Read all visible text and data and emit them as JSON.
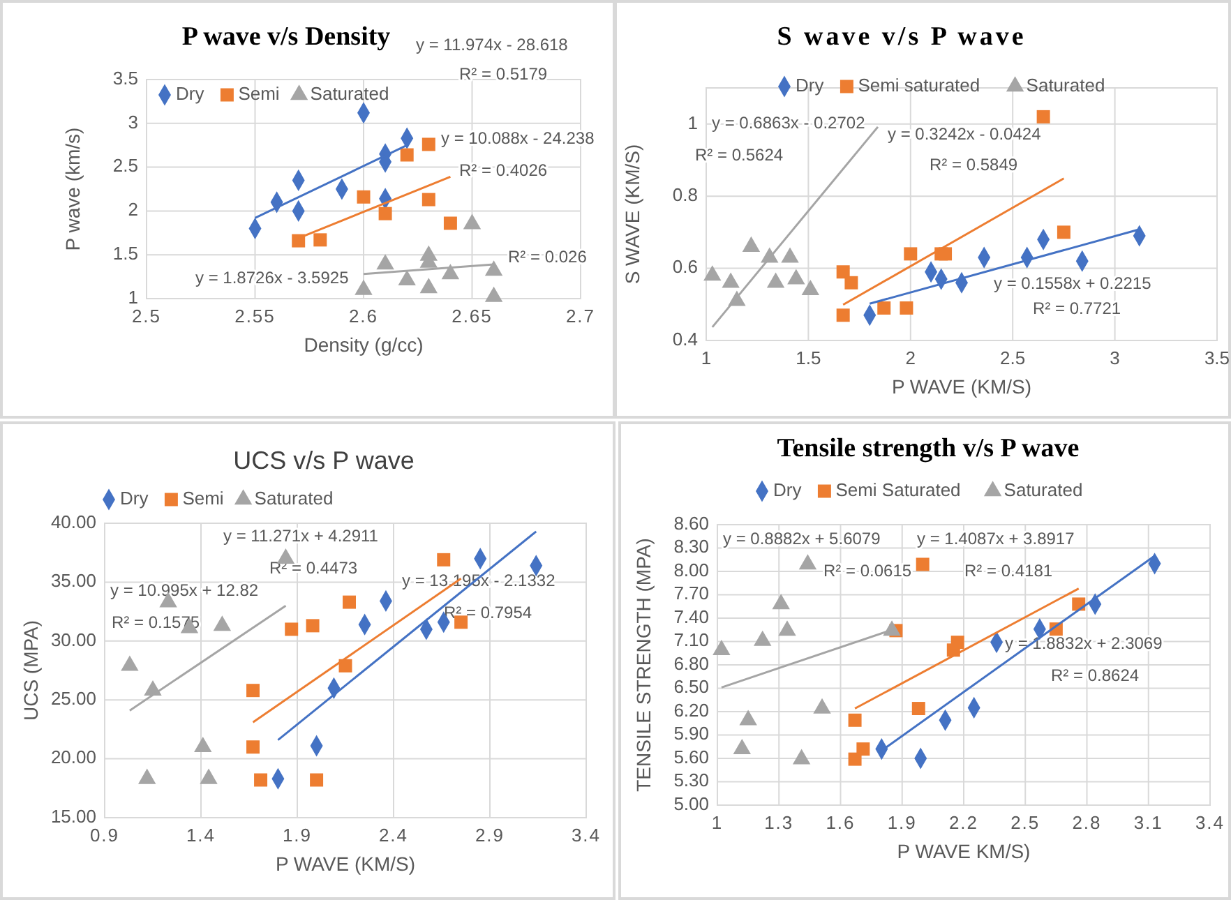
{
  "chart_data": [
    {
      "type": "scatter",
      "title": "P wave v/s Density",
      "xlabel": "Density (g/cc)",
      "ylabel": "P wave (km/s)",
      "xlim": [
        2.5,
        2.7
      ],
      "xticks": [
        2.5,
        2.55,
        2.6,
        2.65,
        2.7
      ],
      "ylim": [
        1,
        3.5
      ],
      "yticks": [
        1,
        1.5,
        2,
        2.5,
        3,
        3.5
      ],
      "grid": true,
      "legend": "top",
      "series": [
        {
          "name": "Dry",
          "color": "#4472c4",
          "marker": "diamond",
          "x": [
            2.55,
            2.56,
            2.57,
            2.57,
            2.59,
            2.6,
            2.61,
            2.61,
            2.61,
            2.62
          ],
          "values": [
            1.8,
            2.1,
            2.35,
            2.0,
            2.25,
            3.12,
            2.65,
            2.56,
            2.14,
            2.83
          ]
        },
        {
          "name": "Semi",
          "color": "#ed7d31",
          "marker": "square",
          "x": [
            2.57,
            2.58,
            2.6,
            2.61,
            2.62,
            2.63,
            2.63,
            2.64
          ],
          "values": [
            1.66,
            1.67,
            2.16,
            1.97,
            2.64,
            2.76,
            2.13,
            1.86
          ]
        },
        {
          "name": "Saturated",
          "color": "#a5a5a5",
          "marker": "triangle",
          "x": [
            2.6,
            2.61,
            2.62,
            2.63,
            2.63,
            2.63,
            2.64,
            2.65,
            2.66,
            2.66
          ],
          "values": [
            1.1,
            1.39,
            1.21,
            1.49,
            1.41,
            1.12,
            1.28,
            1.85,
            1.32,
            1.02
          ]
        },
        {
          "type": "line",
          "color": "#4472c4",
          "marker": "none",
          "x": [
            2.55,
            2.62
          ],
          "values": [
            1.92,
            2.75
          ]
        },
        {
          "type": "line",
          "color": "#ed7d31",
          "marker": "none",
          "x": [
            2.57,
            2.64
          ],
          "values": [
            1.69,
            2.39
          ]
        },
        {
          "type": "line",
          "color": "#a5a5a5",
          "marker": "none",
          "x": [
            2.6,
            2.66
          ],
          "values": [
            1.28,
            1.39
          ]
        }
      ],
      "annotations": [
        "y = 11.974x - 28.618",
        "R² = 0.5179",
        "y = 10.088x - 24.238",
        "R² = 0.4026",
        "y = 1.8726x - 3.5925",
        "R² = 0.026"
      ]
    },
    {
      "type": "scatter",
      "title": "S wave v/s P wave",
      "xlabel": "P WAVE (KM/S)",
      "ylabel": "S WAVE (KM/S)",
      "xlim": [
        1,
        3.5
      ],
      "xticks": [
        1,
        1.5,
        2,
        2.5,
        3,
        3.5
      ],
      "ylim": [
        0.4,
        1.1
      ],
      "yticks": [
        0.4,
        0.6,
        0.8,
        1
      ],
      "grid": true,
      "legend": "top",
      "series": [
        {
          "name": "Dry",
          "color": "#4472c4",
          "marker": "diamond",
          "x": [
            1.8,
            2.1,
            2.15,
            2.25,
            2.36,
            2.57,
            2.65,
            2.84,
            3.12
          ],
          "values": [
            0.47,
            0.59,
            0.57,
            0.56,
            0.63,
            0.63,
            0.68,
            0.62,
            0.69
          ]
        },
        {
          "name": "Semi saturated",
          "color": "#ed7d31",
          "marker": "square",
          "x": [
            1.67,
            1.67,
            1.71,
            1.87,
            1.98,
            2.0,
            2.15,
            2.17,
            2.65,
            2.75
          ],
          "values": [
            0.47,
            0.59,
            0.56,
            0.49,
            0.49,
            0.64,
            0.64,
            0.64,
            1.02,
            0.7
          ]
        },
        {
          "name": "Saturated",
          "color": "#a5a5a5",
          "marker": "triangle",
          "x": [
            1.03,
            1.12,
            1.15,
            1.22,
            1.31,
            1.34,
            1.41,
            1.44,
            1.51
          ],
          "values": [
            0.58,
            0.56,
            0.51,
            0.66,
            0.63,
            0.56,
            0.63,
            0.57,
            0.54
          ]
        },
        {
          "type": "line",
          "color": "#4472c4",
          "marker": "none",
          "x": [
            1.8,
            3.12
          ],
          "values": [
            0.502,
            0.708
          ]
        },
        {
          "type": "line",
          "color": "#ed7d31",
          "marker": "none",
          "x": [
            1.67,
            2.75
          ],
          "values": [
            0.499,
            0.849
          ]
        },
        {
          "type": "line",
          "color": "#a5a5a5",
          "marker": "none",
          "x": [
            1.03,
            1.84
          ],
          "values": [
            0.437,
            0.992
          ]
        }
      ],
      "annotations": [
        "y = 0.6863x - 0.2702",
        "R² = 0.5624",
        "y = 0.3242x - 0.0424",
        "R² = 0.5849",
        "y = 0.1558x + 0.2215",
        "R² = 0.7721"
      ]
    },
    {
      "type": "scatter",
      "title": "UCS v/s P wave",
      "xlabel": "P WAVE (KM/S)",
      "ylabel": "UCS (MPA)",
      "xlim": [
        0.9,
        3.4
      ],
      "xticks": [
        0.9,
        1.4,
        1.9,
        2.4,
        2.9,
        3.4
      ],
      "ylim": [
        15,
        40
      ],
      "yticks": [
        {
          "value": 15,
          "label": "15.00"
        },
        {
          "value": 20,
          "label": "20.00"
        },
        {
          "value": 25,
          "label": "25.00"
        },
        {
          "value": 30,
          "label": "30.00"
        },
        {
          "value": 35,
          "label": "35.00"
        },
        {
          "value": 40,
          "label": "40.00"
        }
      ],
      "grid": true,
      "legend": "top",
      "series": [
        {
          "name": "Dry",
          "color": "#4472c4",
          "marker": "diamond",
          "x": [
            1.8,
            2.0,
            2.09,
            2.25,
            2.36,
            2.57,
            2.66,
            2.85,
            3.14
          ],
          "values": [
            18.3,
            21.1,
            26.0,
            31.4,
            33.4,
            31.0,
            31.6,
            37.0,
            36.4
          ]
        },
        {
          "name": "Semi",
          "color": "#ed7d31",
          "marker": "square",
          "x": [
            1.67,
            1.67,
            1.71,
            1.87,
            1.98,
            2.0,
            2.17,
            2.15,
            2.66,
            2.75
          ],
          "values": [
            25.8,
            21.0,
            18.2,
            31.0,
            31.3,
            18.2,
            33.3,
            27.9,
            36.9,
            31.6
          ]
        },
        {
          "name": "Saturated",
          "color": "#a5a5a5",
          "marker": "triangle",
          "x": [
            1.03,
            1.12,
            1.15,
            1.23,
            1.34,
            1.41,
            1.44,
            1.51,
            1.84
          ],
          "values": [
            27.9,
            18.3,
            25.8,
            33.3,
            31.1,
            21.0,
            18.3,
            31.3,
            37.0
          ]
        },
        {
          "type": "line",
          "color": "#4472c4",
          "marker": "none",
          "x": [
            1.8,
            3.14
          ],
          "values": [
            21.6,
            39.3
          ]
        },
        {
          "type": "line",
          "color": "#ed7d31",
          "marker": "none",
          "x": [
            1.67,
            2.75
          ],
          "values": [
            23.1,
            35.3
          ]
        },
        {
          "type": "line",
          "color": "#a5a5a5",
          "marker": "none",
          "x": [
            1.03,
            1.84
          ],
          "values": [
            24.1,
            33.0
          ]
        }
      ],
      "annotations": [
        "y = 11.271x + 4.2911",
        "R² = 0.4473",
        "y = 13.195x - 2.1332",
        "R² = 0.7954",
        "y = 10.995x + 12.82",
        "R² = 0.1575"
      ]
    },
    {
      "type": "scatter",
      "title": "Tensile strength v/s P wave",
      "xlabel": "P WAVE KM/S)",
      "ylabel": "TENSILE STRENGTH (MPA)",
      "xlim": [
        1,
        3.4
      ],
      "xticks": [
        1,
        1.3,
        1.6,
        1.9,
        2.2,
        2.5,
        2.8,
        3.1,
        3.4
      ],
      "ylim": [
        5,
        8.6
      ],
      "yticks": [
        {
          "value": 5,
          "label": "5.00"
        },
        {
          "value": 5.3,
          "label": "5.30"
        },
        {
          "value": 5.6,
          "label": "5.60"
        },
        {
          "value": 5.9,
          "label": "5.90"
        },
        {
          "value": 6.2,
          "label": "6.20"
        },
        {
          "value": 6.5,
          "label": "6.50"
        },
        {
          "value": 6.8,
          "label": "6.80"
        },
        {
          "value": 7.1,
          "label": "7.10"
        },
        {
          "value": 7.4,
          "label": "7.40"
        },
        {
          "value": 7.7,
          "label": "7.70"
        },
        {
          "value": 8,
          "label": "8.00"
        },
        {
          "value": 8.3,
          "label": "8.30"
        },
        {
          "value": 8.6,
          "label": "8.60"
        }
      ],
      "grid": true,
      "legend": "top",
      "series": [
        {
          "name": "Dry",
          "color": "#4472c4",
          "marker": "diamond",
          "x": [
            1.8,
            1.99,
            2.11,
            2.25,
            2.36,
            2.57,
            2.84,
            3.13
          ],
          "values": [
            5.72,
            5.6,
            6.09,
            6.25,
            7.09,
            7.26,
            7.58,
            8.1
          ]
        },
        {
          "name": "Semi Saturated",
          "color": "#ed7d31",
          "marker": "square",
          "x": [
            1.67,
            1.67,
            1.71,
            1.87,
            1.98,
            2.0,
            2.15,
            2.17,
            2.65,
            2.76
          ],
          "values": [
            6.09,
            5.59,
            5.72,
            7.24,
            6.24,
            8.09,
            6.99,
            7.09,
            7.26,
            7.58
          ]
        },
        {
          "name": "Saturated",
          "color": "#a5a5a5",
          "marker": "triangle",
          "x": [
            1.02,
            1.12,
            1.15,
            1.22,
            1.31,
            1.34,
            1.41,
            1.44,
            1.51,
            1.85
          ],
          "values": [
            6.99,
            5.72,
            6.09,
            7.11,
            7.58,
            7.24,
            5.59,
            8.09,
            6.24,
            7.24
          ]
        },
        {
          "type": "line",
          "color": "#4472c4",
          "marker": "none",
          "x": [
            1.8,
            3.13
          ],
          "values": [
            5.7,
            8.2
          ]
        },
        {
          "type": "line",
          "color": "#ed7d31",
          "marker": "none",
          "x": [
            1.67,
            2.76
          ],
          "values": [
            6.24,
            7.78
          ]
        },
        {
          "type": "line",
          "color": "#a5a5a5",
          "marker": "none",
          "x": [
            1.02,
            1.85
          ],
          "values": [
            6.51,
            7.25
          ]
        }
      ],
      "annotations": [
        "y = 0.8882x + 5.6079",
        "R² = 0.0615",
        "y = 1.4087x + 3.8917",
        "R² = 0.4181",
        "y = 1.8832x + 2.3069",
        "R² = 0.8624"
      ]
    }
  ]
}
